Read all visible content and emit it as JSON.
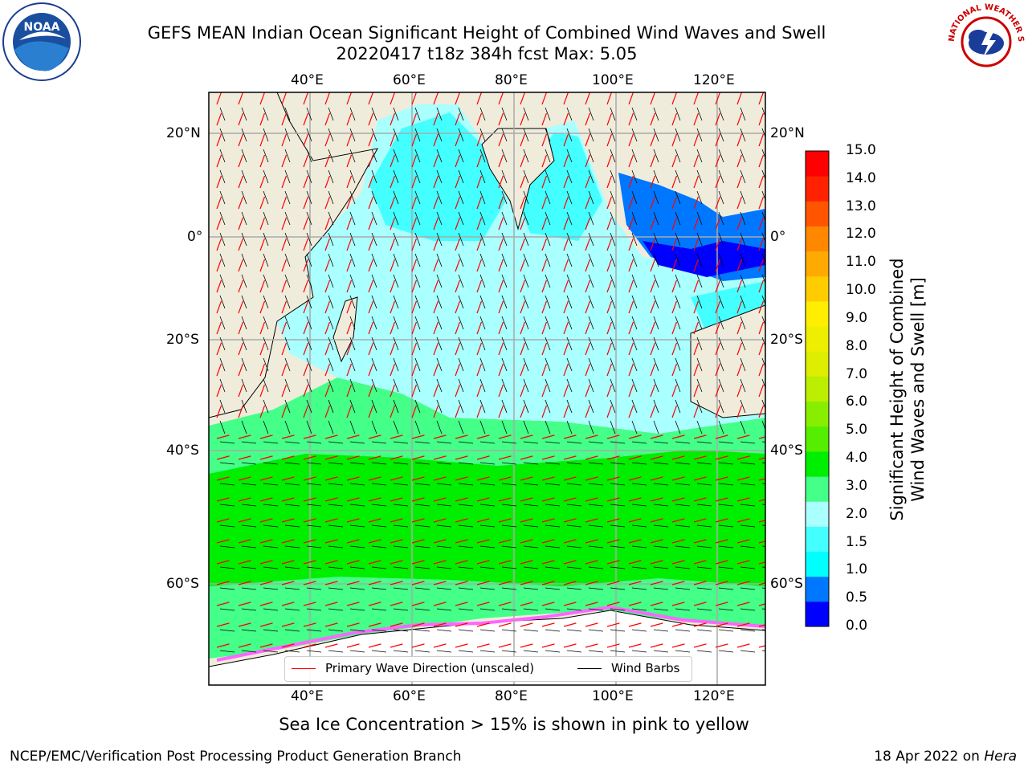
{
  "title": {
    "line1": "GEFS MEAN Indian Ocean Significant Height of Combined Wind Waves and Swell",
    "line2": "20220417 t18z 384h fcst   Max: 5.05"
  },
  "map": {
    "lon_labels": [
      "40°E",
      "60°E",
      "80°E",
      "100°E",
      "120°E"
    ],
    "lat_labels_left": [
      "20°N",
      "0°",
      "20°S",
      "40°S",
      "60°S"
    ],
    "lat_labels_right": [
      "20°N",
      "0°",
      "20°S",
      "40°S",
      "60°S"
    ],
    "extent": {
      "lon": [
        20,
        130
      ],
      "lat": [
        -75,
        28
      ]
    },
    "grid": true,
    "colors": {
      "land": "#efecdc",
      "ice_white": "#ffffff",
      "wave_arrow": "#ff0000",
      "wind_barb": "#000000",
      "grid": "#aaaaaa"
    }
  },
  "legend": {
    "wave_label": "Primary Wave Direction (unscaled)",
    "wind_label": "Wind Barbs"
  },
  "colorbar": {
    "label_line1": "Significant Height of Combined",
    "label_line2": "Wind Waves and Swell [m]",
    "ticks": [
      "0.0",
      "0.5",
      "1.0",
      "1.5",
      "2.0",
      "3.0",
      "4.0",
      "5.0",
      "6.0",
      "7.0",
      "8.0",
      "9.0",
      "10.0",
      "11.0",
      "12.0",
      "13.0",
      "14.0",
      "15.0"
    ],
    "colors": [
      "#0000ff",
      "#0077ff",
      "#00ffff",
      "#44ffff",
      "#aaffff",
      "#44ff88",
      "#00ee00",
      "#55ee00",
      "#88ee00",
      "#bbee00",
      "#ddee00",
      "#eeee00",
      "#ffee00",
      "#ffcc00",
      "#ffaa00",
      "#ff8800",
      "#ff5500",
      "#ff2200",
      "#ff0000"
    ]
  },
  "ice_note": "Sea Ice Concentration > 15% is shown in pink to yellow",
  "footer": {
    "left": "NCEP/EMC/Verification Post Processing Product Generation Branch",
    "date": "18 Apr 2022 on ",
    "machine": "Hera"
  },
  "logos": {
    "noaa_text": "NOAA",
    "nws_text": "NATIONAL WEATHER SERVICE"
  }
}
